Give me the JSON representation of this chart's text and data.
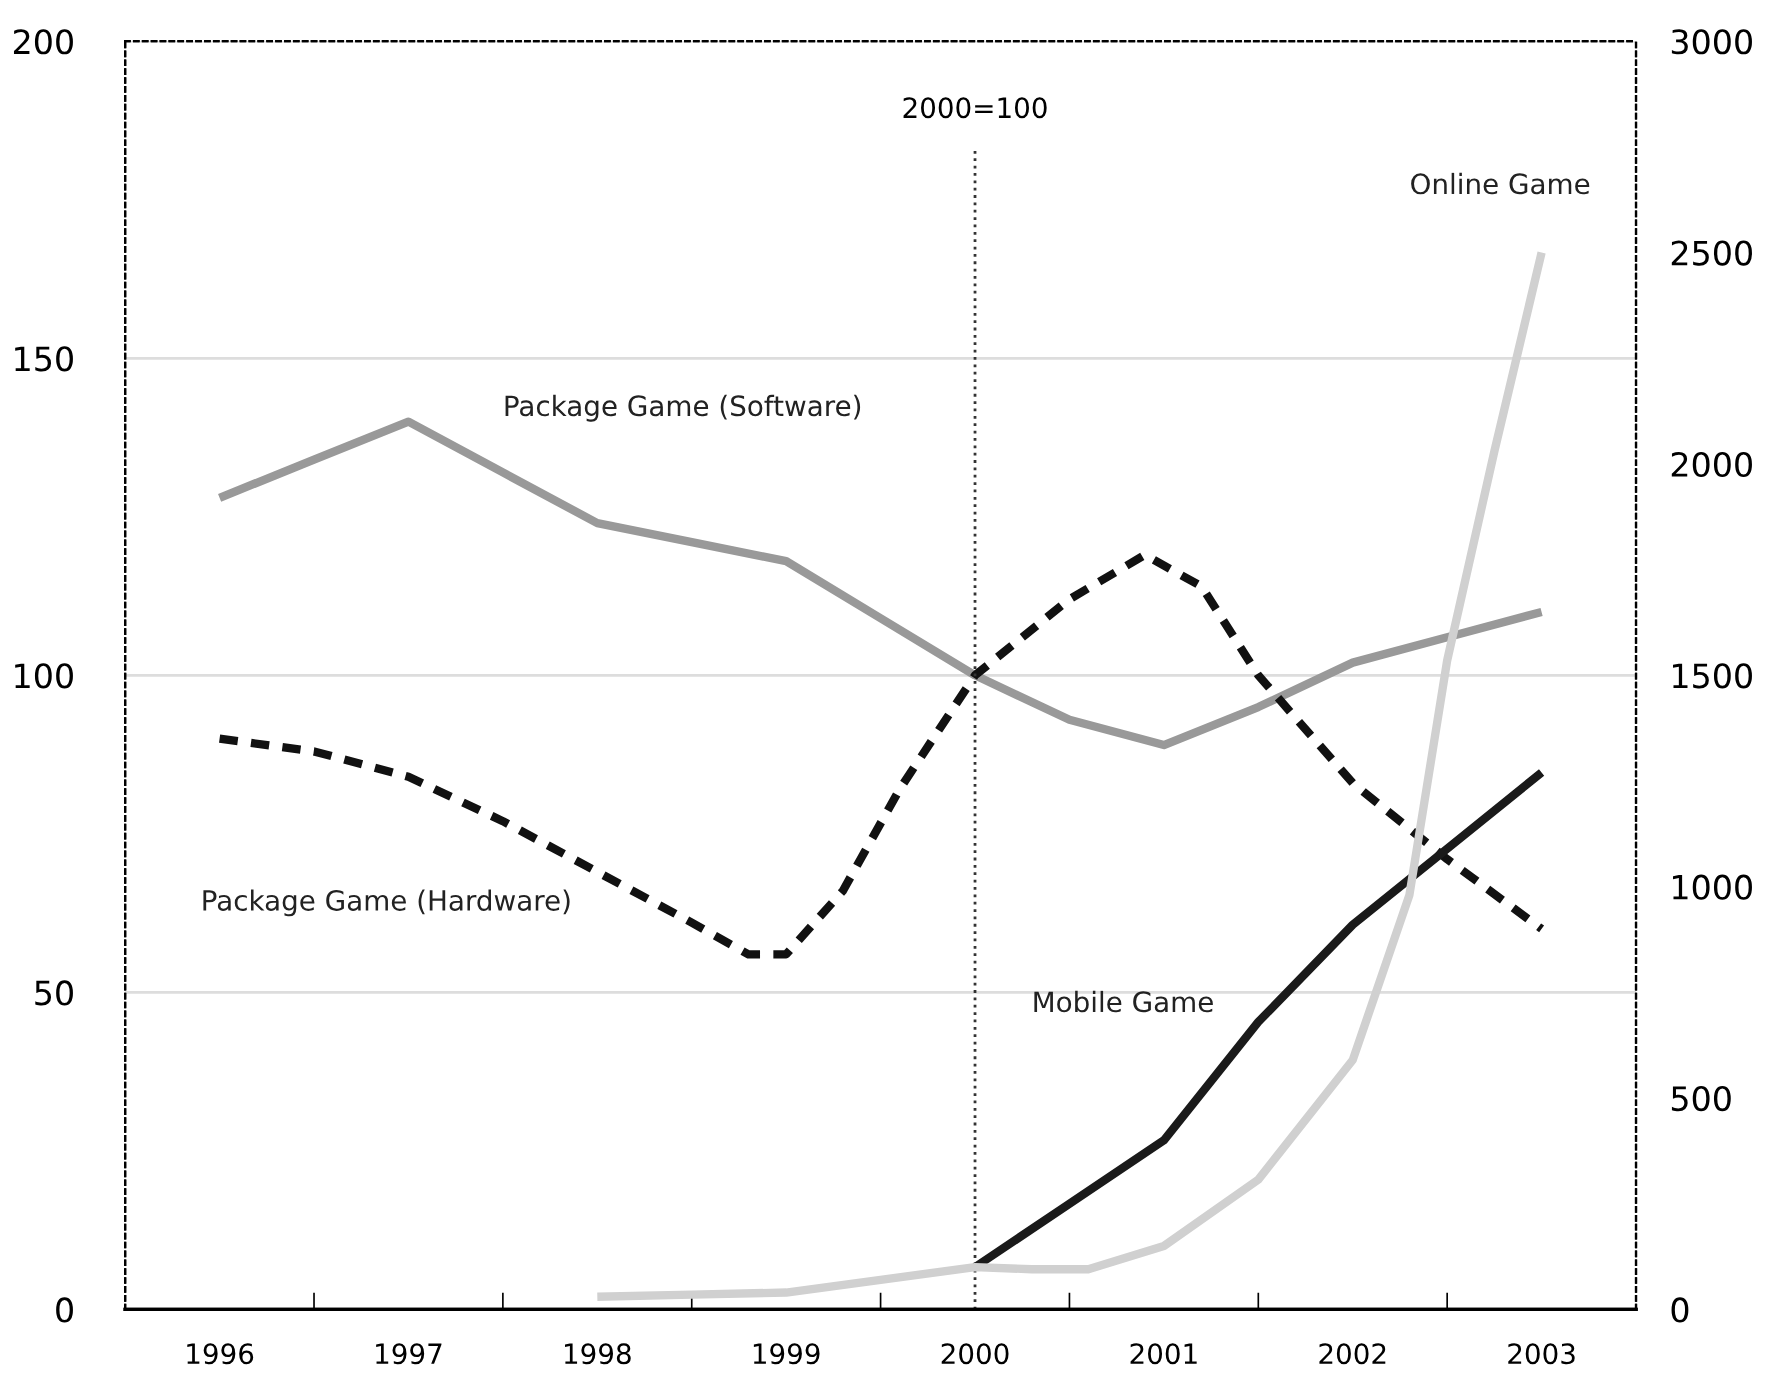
{
  "chart_data": {
    "type": "line",
    "series": [
      {
        "name": "Package Game (Software)",
        "color": "#999999",
        "line_style": "solid",
        "x": [
          1996,
          1996.5,
          1997,
          1997.5,
          1998,
          1998.5,
          1999,
          1999.5,
          2000,
          2000.5,
          2001,
          2001.5,
          2002,
          2002.5,
          2003
        ],
        "values": [
          128,
          134,
          140,
          132,
          124,
          121,
          118,
          109,
          100,
          93,
          89,
          95,
          102,
          106,
          110
        ]
      },
      {
        "name": "Package Game (Hardware)",
        "color": "#111111",
        "line_style": "dashed",
        "x": [
          1996,
          1996.5,
          1997,
          1997.5,
          1998,
          1998.5,
          1998.8,
          1999,
          1999.3,
          1999.6,
          2000,
          2000.5,
          2000.9,
          2001.2,
          2001.5,
          2002,
          2002.5,
          2003
        ],
        "values": [
          90,
          88,
          84,
          77,
          69,
          61,
          56,
          56,
          66,
          82,
          100,
          112,
          119,
          114,
          100,
          83,
          71,
          60
        ]
      },
      {
        "name": "Mobile Game",
        "color": "#1a1a1a",
        "line_style": "solid",
        "axis": "y2",
        "x": [
          2000,
          2000.5,
          2001,
          2001.5,
          2002,
          2002.5,
          2003
        ],
        "values": [
          100,
          250,
          400,
          680,
          910,
          1090,
          1270
        ]
      },
      {
        "name": "Online Game",
        "color": "#d0d0d0",
        "line_style": "solid",
        "axis": "y2",
        "x": [
          1998,
          1998.5,
          1999,
          1999.5,
          2000,
          2000.3,
          2000.6,
          2001,
          2001.5,
          2002,
          2002.3,
          2002.5,
          2002.75,
          2003
        ],
        "values": [
          30,
          35,
          40,
          70,
          100,
          95,
          95,
          150,
          307,
          590,
          980,
          1535,
          2030,
          2500
        ]
      }
    ],
    "xlim": [
      1995.5,
      2003.5
    ],
    "xticks": [
      1996,
      1997,
      1998,
      1999,
      2000,
      2001,
      2002,
      2003
    ],
    "ylim": [
      0,
      200
    ],
    "yticks": [
      0,
      50,
      100,
      150,
      200
    ],
    "y2lim": [
      0,
      3000
    ],
    "y2ticks": [
      0,
      500,
      1000,
      1500,
      2000,
      2500,
      3000
    ],
    "ref_lines": [
      {
        "axis": "x",
        "value": 2000,
        "label": "2000=100",
        "line_style": "dotted",
        "color": "#333333"
      }
    ],
    "grid": "y",
    "legend": false,
    "marker": "none"
  }
}
